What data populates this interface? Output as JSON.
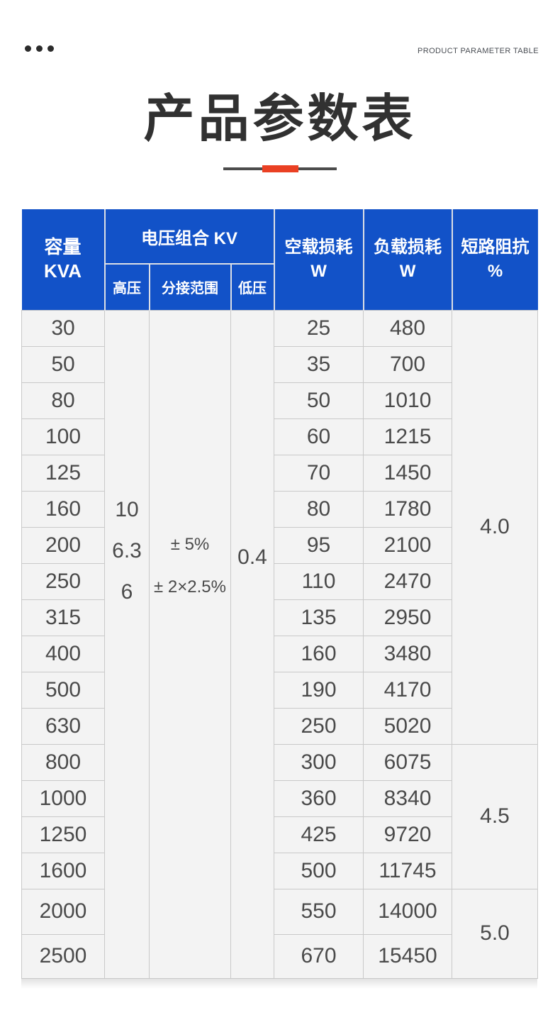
{
  "page": {
    "eyebrow": "PRODUCT PARAMETER TABLE",
    "title": "产品参数表"
  },
  "colors": {
    "header_blue": "#1252c8",
    "accent_red": "#ea4023",
    "divider_dark": "#4c4c4c",
    "body_cell_bg": "#f3f3f3",
    "body_border": "#c9c9c9",
    "body_text": "#4a4a4a"
  },
  "table": {
    "header": {
      "capacity_line1": "容量",
      "capacity_line2": "KVA",
      "voltage_group": "电压组合 KV",
      "sub_high": "高压",
      "sub_tap": "分接范围",
      "sub_low": "低压",
      "no_load_line1": "空载损耗",
      "no_load_line2": "W",
      "load_line1": "负载损耗",
      "load_line2": "W",
      "impedance_line1": "短路阻抗",
      "impedance_line2": "%"
    },
    "merged": {
      "high_voltage": [
        "10",
        "6.3",
        "6"
      ],
      "tap_range": [
        "± 5%",
        "± 2×2.5%"
      ],
      "low_voltage": [
        "0.4"
      ]
    },
    "rows": [
      {
        "kva": "30",
        "no_load": "25",
        "load": "480"
      },
      {
        "kva": "50",
        "no_load": "35",
        "load": "700"
      },
      {
        "kva": "80",
        "no_load": "50",
        "load": "1010"
      },
      {
        "kva": "100",
        "no_load": "60",
        "load": "1215"
      },
      {
        "kva": "125",
        "no_load": "70",
        "load": "1450"
      },
      {
        "kva": "160",
        "no_load": "80",
        "load": "1780"
      },
      {
        "kva": "200",
        "no_load": "95",
        "load": "2100"
      },
      {
        "kva": "250",
        "no_load": "110",
        "load": "2470"
      },
      {
        "kva": "315",
        "no_load": "135",
        "load": "2950"
      },
      {
        "kva": "400",
        "no_load": "160",
        "load": "3480"
      },
      {
        "kva": "500",
        "no_load": "190",
        "load": "4170"
      },
      {
        "kva": "630",
        "no_load": "250",
        "load": "5020"
      },
      {
        "kva": "800",
        "no_load": "300",
        "load": "6075"
      },
      {
        "kva": "1000",
        "no_load": "360",
        "load": "8340"
      },
      {
        "kva": "1250",
        "no_load": "425",
        "load": "9720"
      },
      {
        "kva": "1600",
        "no_load": "500",
        "load": "11745"
      },
      {
        "kva": "2000",
        "no_load": "550",
        "load": "14000"
      },
      {
        "kva": "2500",
        "no_load": "670",
        "load": "15450"
      }
    ],
    "impedance_groups": [
      {
        "value": "4.0",
        "span": 12
      },
      {
        "value": "4.5",
        "span": 4
      },
      {
        "value": "5.0",
        "span": 2
      }
    ]
  }
}
